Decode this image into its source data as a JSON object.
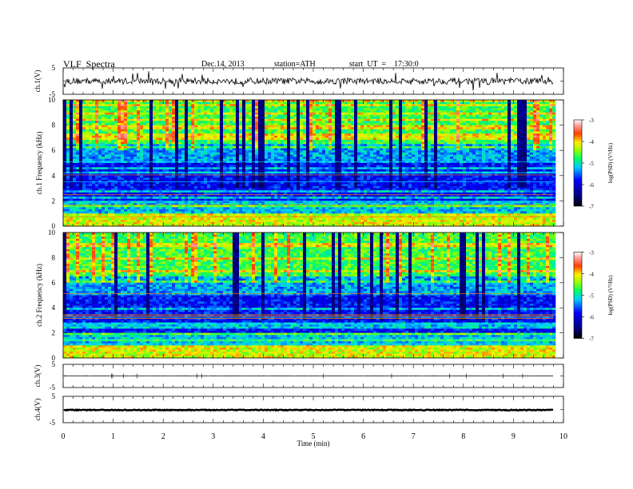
{
  "header": {
    "title": "VLF  Spectra",
    "date": "Dec.14, 2013",
    "station": "station=ATH",
    "start": "start  UT  =    17:30:0"
  },
  "chart_data": [
    {
      "type": "line",
      "panel": "ch1-waveform",
      "ylabel": "ch.1(V)",
      "ylim": [
        -5,
        5
      ],
      "y_ticks": [
        "5",
        "-5"
      ],
      "baseline_value": 0,
      "noise_amplitude": 1.2
    },
    {
      "type": "heatmap",
      "panel": "ch1-spectrogram",
      "ylabel": "ch.1 Frequency (kHz)",
      "y_range": [
        0,
        10
      ],
      "y_ticks": [
        "0",
        "2",
        "4",
        "6",
        "8",
        "10"
      ],
      "data_end_min": 9.8,
      "colorbar": {
        "label": "log(PSD) (V²/Hz)",
        "range": [
          -7,
          -3
        ],
        "ticks": [
          "-3",
          "-4",
          "-5",
          "-6",
          "-7"
        ]
      }
    },
    {
      "type": "heatmap",
      "panel": "ch2-spectrogram",
      "ylabel": "ch.2 Frequency (kHz)",
      "y_range": [
        0,
        10
      ],
      "y_ticks": [
        "0",
        "2",
        "4",
        "6",
        "8",
        "10"
      ],
      "data_end_min": 9.8,
      "colorbar": {
        "label": "log(PSD) (V²/Hz)",
        "range": [
          -7,
          -3
        ],
        "ticks": [
          "-3",
          "-4",
          "-5",
          "-6",
          "-7"
        ]
      }
    },
    {
      "type": "line",
      "panel": "ch3-waveform",
      "ylabel": "ch.3(V)",
      "ylim": [
        -5,
        5
      ],
      "y_ticks": [
        "5",
        "-5"
      ],
      "baseline_value": 0,
      "noise_amplitude": 0.08
    },
    {
      "type": "line",
      "panel": "ch4-waveform",
      "ylabel": "ch.4(V)",
      "ylim": [
        -5,
        5
      ],
      "y_ticks": [
        "5",
        "-5"
      ],
      "baseline_value": -0.2,
      "noise_amplitude": 0.15
    }
  ],
  "x_axis": {
    "label": "Time  (min)",
    "range": [
      0,
      10
    ],
    "ticks": [
      "0",
      "1",
      "2",
      "3",
      "4",
      "5",
      "6",
      "7",
      "8",
      "9",
      "10"
    ]
  }
}
